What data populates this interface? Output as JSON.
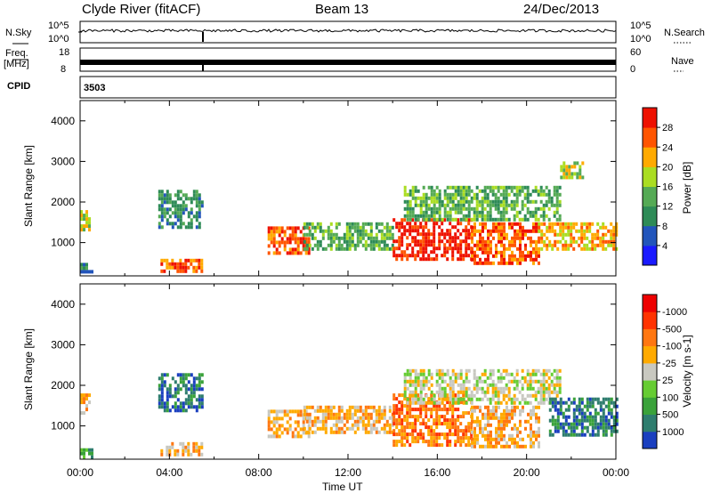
{
  "header": {
    "station": "Clyde River (fitACF)",
    "beam": "Beam 13",
    "date": "24/Dec/2013"
  },
  "top_panels": {
    "nsky_label": "N.Sky",
    "nsearch_label": "N.Search",
    "nsky_ticks": [
      "10^5",
      "10^0"
    ],
    "nsearch_ticks": [
      "10^5",
      "10^0"
    ],
    "freq_label": "Freq.",
    "freq_unit": "[MHz]",
    "freq_ticks": [
      "18",
      "8"
    ],
    "nave_label": "Nave",
    "nave_ticks": [
      "60",
      "0"
    ],
    "cpid_label": "CPID",
    "cpid_value": "3503"
  },
  "chart_data": [
    {
      "type": "heatmap",
      "name": "power",
      "ylabel": "Slant Range [km]",
      "ylim": [
        180,
        4500
      ],
      "yticks": [
        "1000",
        "2000",
        "3000",
        "4000"
      ],
      "xlim_hours": [
        0,
        24
      ],
      "colorbar": {
        "label": "Power [dB]",
        "tick_labels": [
          "4",
          "8",
          "12",
          "16",
          "20",
          "24",
          "28"
        ],
        "colors": [
          "#1a1aff",
          "#2255bb",
          "#2e8b57",
          "#55aa55",
          "#aadd22",
          "#ffaa00",
          "#ff5500",
          "#ee1100"
        ]
      },
      "regions": [
        {
          "t": [
            0.0,
            0.4
          ],
          "r": [
            1300,
            1800
          ],
          "level": 4
        },
        {
          "t": [
            0.0,
            0.5
          ],
          "r": [
            300,
            500
          ],
          "level": 2
        },
        {
          "t": [
            3.5,
            5.5
          ],
          "r": [
            1400,
            2300
          ],
          "level": 2
        },
        {
          "t": [
            3.6,
            5.4
          ],
          "r": [
            300,
            600
          ],
          "level": 6
        },
        {
          "t": [
            8.4,
            10.2
          ],
          "r": [
            700,
            1400
          ],
          "level": 6
        },
        {
          "t": [
            10.0,
            14.0
          ],
          "r": [
            800,
            1500
          ],
          "level": 3
        },
        {
          "t": [
            14.0,
            17.5
          ],
          "r": [
            600,
            1600
          ],
          "level": 7
        },
        {
          "t": [
            17.5,
            20.5
          ],
          "r": [
            500,
            1500
          ],
          "level": 6
        },
        {
          "t": [
            14.5,
            21.5
          ],
          "r": [
            1600,
            2400
          ],
          "level": 3
        },
        {
          "t": [
            20.5,
            24.0
          ],
          "r": [
            800,
            1500
          ],
          "level": 5
        },
        {
          "t": [
            21.5,
            22.5
          ],
          "r": [
            2600,
            3000
          ],
          "level": 4
        }
      ]
    },
    {
      "type": "heatmap",
      "name": "velocity",
      "ylabel": "Slant Range [km]",
      "ylim": [
        180,
        4500
      ],
      "yticks": [
        "1000",
        "2000",
        "3000",
        "4000"
      ],
      "xlim_hours": [
        0,
        24
      ],
      "xticks": [
        "00:00",
        "04:00",
        "08:00",
        "12:00",
        "16:00",
        "20:00",
        "00:00"
      ],
      "xlabel": "Time UT",
      "colorbar": {
        "label": "Velocity [m s-1]",
        "tick_labels": [
          "1000",
          "500",
          "100",
          "25",
          "-25",
          "-100",
          "-500",
          "-1000"
        ],
        "colors": [
          "#1a3fbf",
          "#2e7d6e",
          "#3aa23a",
          "#66cc33",
          "#c8c8c0",
          "#ffaa00",
          "#ff7711",
          "#ff3300",
          "#ee0000"
        ]
      },
      "regions": [
        {
          "t": [
            0.0,
            0.4
          ],
          "r": [
            1300,
            1800
          ],
          "level": 5
        },
        {
          "t": [
            0.0,
            0.5
          ],
          "r": [
            250,
            450
          ],
          "level": 2
        },
        {
          "t": [
            3.5,
            5.5
          ],
          "r": [
            1400,
            2300
          ],
          "level": 1
        },
        {
          "t": [
            3.6,
            5.4
          ],
          "r": [
            300,
            600
          ],
          "level": 5
        },
        {
          "t": [
            8.4,
            10.2
          ],
          "r": [
            700,
            1400
          ],
          "level": 5
        },
        {
          "t": [
            10.0,
            14.0
          ],
          "r": [
            800,
            1500
          ],
          "level": 5
        },
        {
          "t": [
            14.0,
            17.5
          ],
          "r": [
            500,
            1800
          ],
          "level": 6
        },
        {
          "t": [
            17.5,
            20.5
          ],
          "r": [
            500,
            1500
          ],
          "level": 5
        },
        {
          "t": [
            14.5,
            21.5
          ],
          "r": [
            1600,
            2400
          ],
          "level": 4
        },
        {
          "t": [
            21.0,
            24.0
          ],
          "r": [
            800,
            1700
          ],
          "level": 1
        }
      ]
    }
  ]
}
